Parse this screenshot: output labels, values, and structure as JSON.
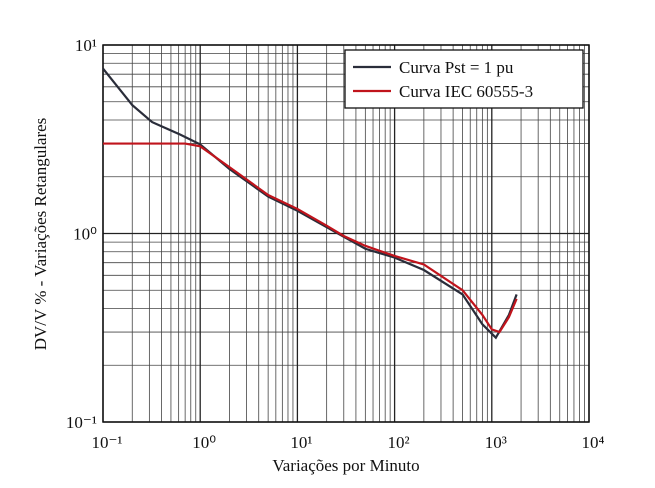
{
  "chart_data": {
    "type": "line",
    "xlabel": "Variações por Minuto",
    "ylabel": "DV/V % - Variações Retangulares",
    "x_log": true,
    "y_log": true,
    "grid": true,
    "minor_grid": true,
    "legend": "upper right",
    "xlim": [
      0.1,
      10000
    ],
    "ylim": [
      0.1,
      10
    ],
    "xticks": [
      {
        "value": 0.1,
        "label": "10⁻¹"
      },
      {
        "value": 1,
        "label": "10⁰"
      },
      {
        "value": 10,
        "label": "10¹"
      },
      {
        "value": 100,
        "label": "10²"
      },
      {
        "value": 1000,
        "label": "10³"
      },
      {
        "value": 10000,
        "label": "10⁴"
      }
    ],
    "yticks": [
      {
        "value": 0.1,
        "label": "10⁻¹"
      },
      {
        "value": 1,
        "label": "10⁰"
      },
      {
        "value": 10,
        "label": "10¹"
      }
    ],
    "series": [
      {
        "name": "Curva Pst = 1 pu",
        "color": "#2a2d3a",
        "x": [
          0.1,
          0.2,
          0.32,
          0.62,
          1,
          2,
          5,
          10,
          20,
          30,
          50,
          100,
          200,
          500,
          800,
          1100,
          1500,
          1800
        ],
        "values": [
          7.5,
          4.8,
          3.9,
          3.35,
          2.97,
          2.2,
          1.57,
          1.32,
          1.08,
          0.96,
          0.83,
          0.745,
          0.64,
          0.475,
          0.33,
          0.28,
          0.37,
          0.475
        ]
      },
      {
        "name": "Curva IEC 60555-3",
        "color": "#c0141c",
        "x": [
          0.1,
          0.7,
          1,
          2,
          5,
          10,
          20,
          30,
          50,
          100,
          200,
          500,
          800,
          1000,
          1200,
          1500,
          1800
        ],
        "values": [
          3.0,
          3.0,
          2.9,
          2.25,
          1.6,
          1.35,
          1.1,
          0.97,
          0.86,
          0.76,
          0.685,
          0.5,
          0.37,
          0.31,
          0.3,
          0.36,
          0.45
        ]
      }
    ]
  }
}
